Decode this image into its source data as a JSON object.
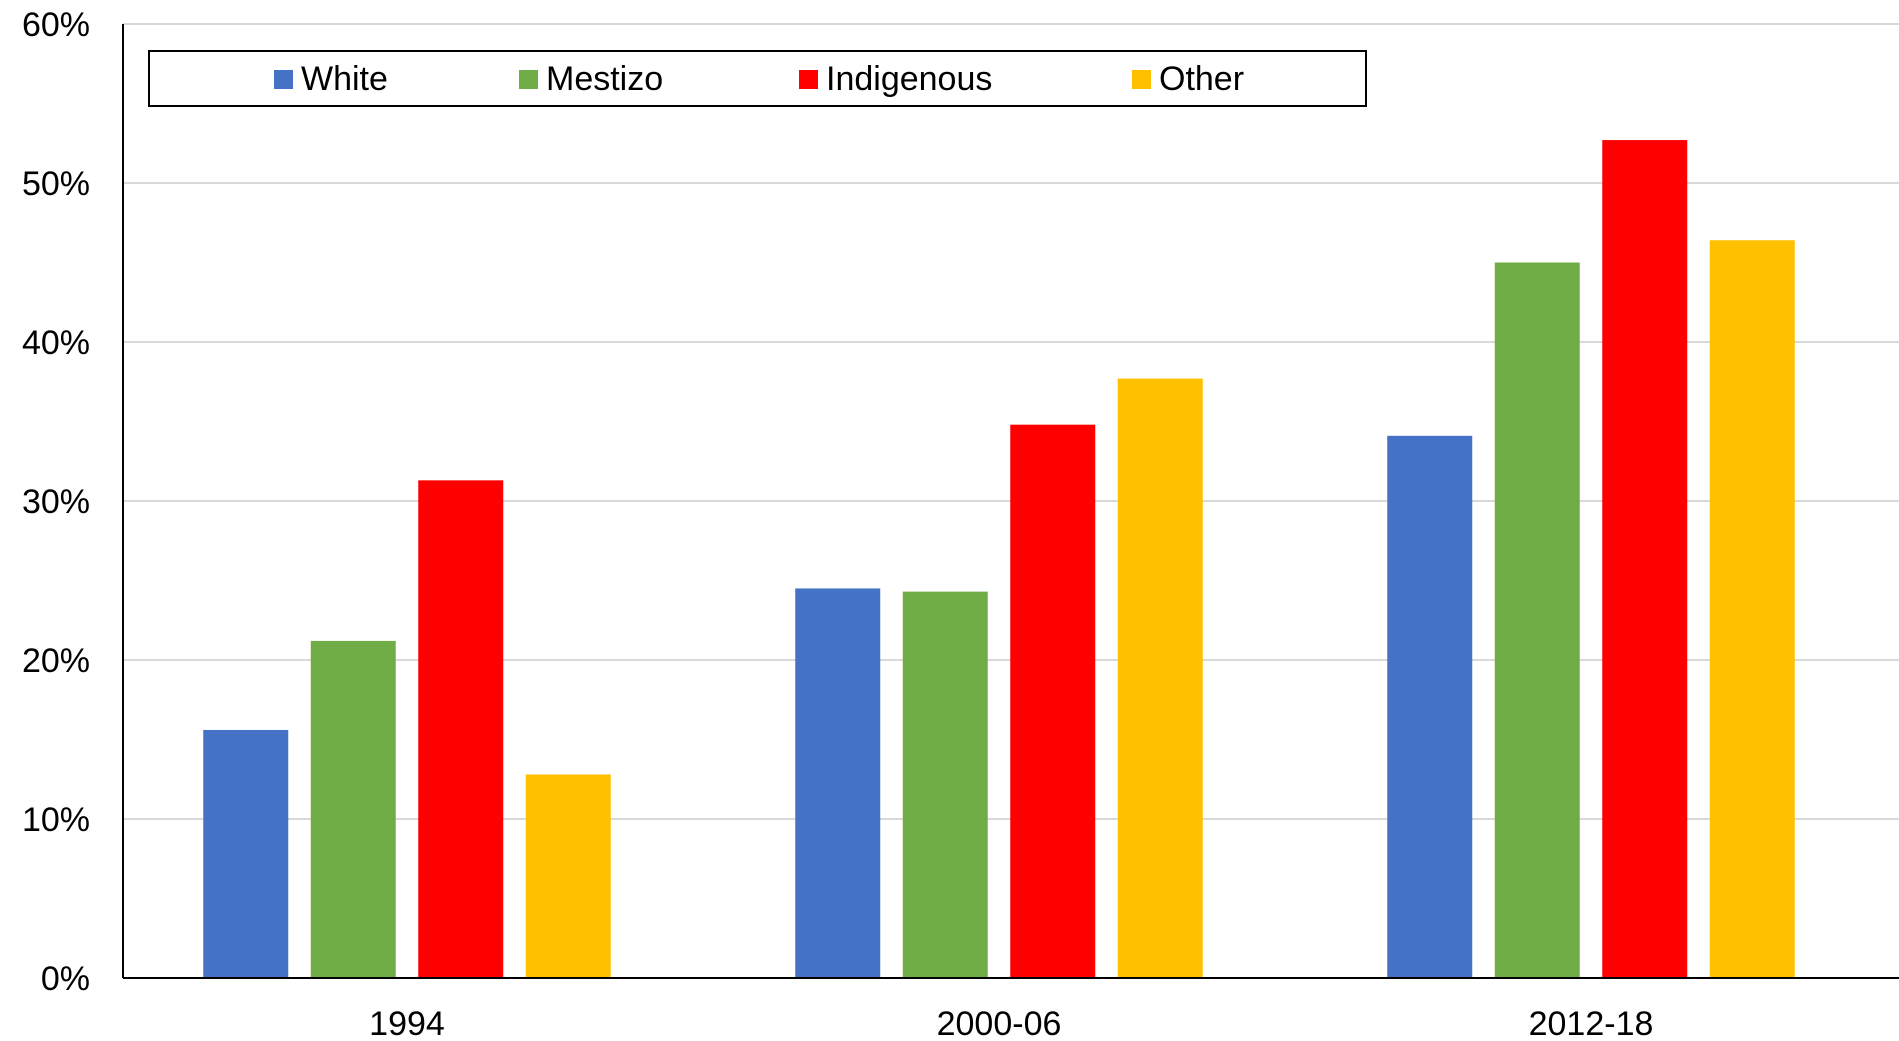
{
  "chart_data": {
    "type": "bar",
    "title": "",
    "xlabel": "",
    "ylabel": "",
    "categories": [
      "1994",
      "2000-06",
      "2012-18"
    ],
    "series": [
      {
        "name": "White",
        "color": "#4472C4",
        "values": [
          0.156,
          0.245,
          0.341
        ]
      },
      {
        "name": "Mestizo",
        "color": "#70AD47",
        "values": [
          0.212,
          0.243,
          0.45
        ]
      },
      {
        "name": "Indigenous",
        "color": "#FF0000",
        "values": [
          0.313,
          0.348,
          0.527
        ]
      },
      {
        "name": "Other",
        "color": "#FFC000",
        "values": [
          0.128,
          0.377,
          0.464
        ]
      }
    ],
    "ylim": [
      0,
      0.6
    ],
    "yticks": [
      "0%",
      "10%",
      "20%",
      "30%",
      "40%",
      "50%",
      "60%"
    ],
    "grid": true,
    "legend_position": "top-left"
  }
}
